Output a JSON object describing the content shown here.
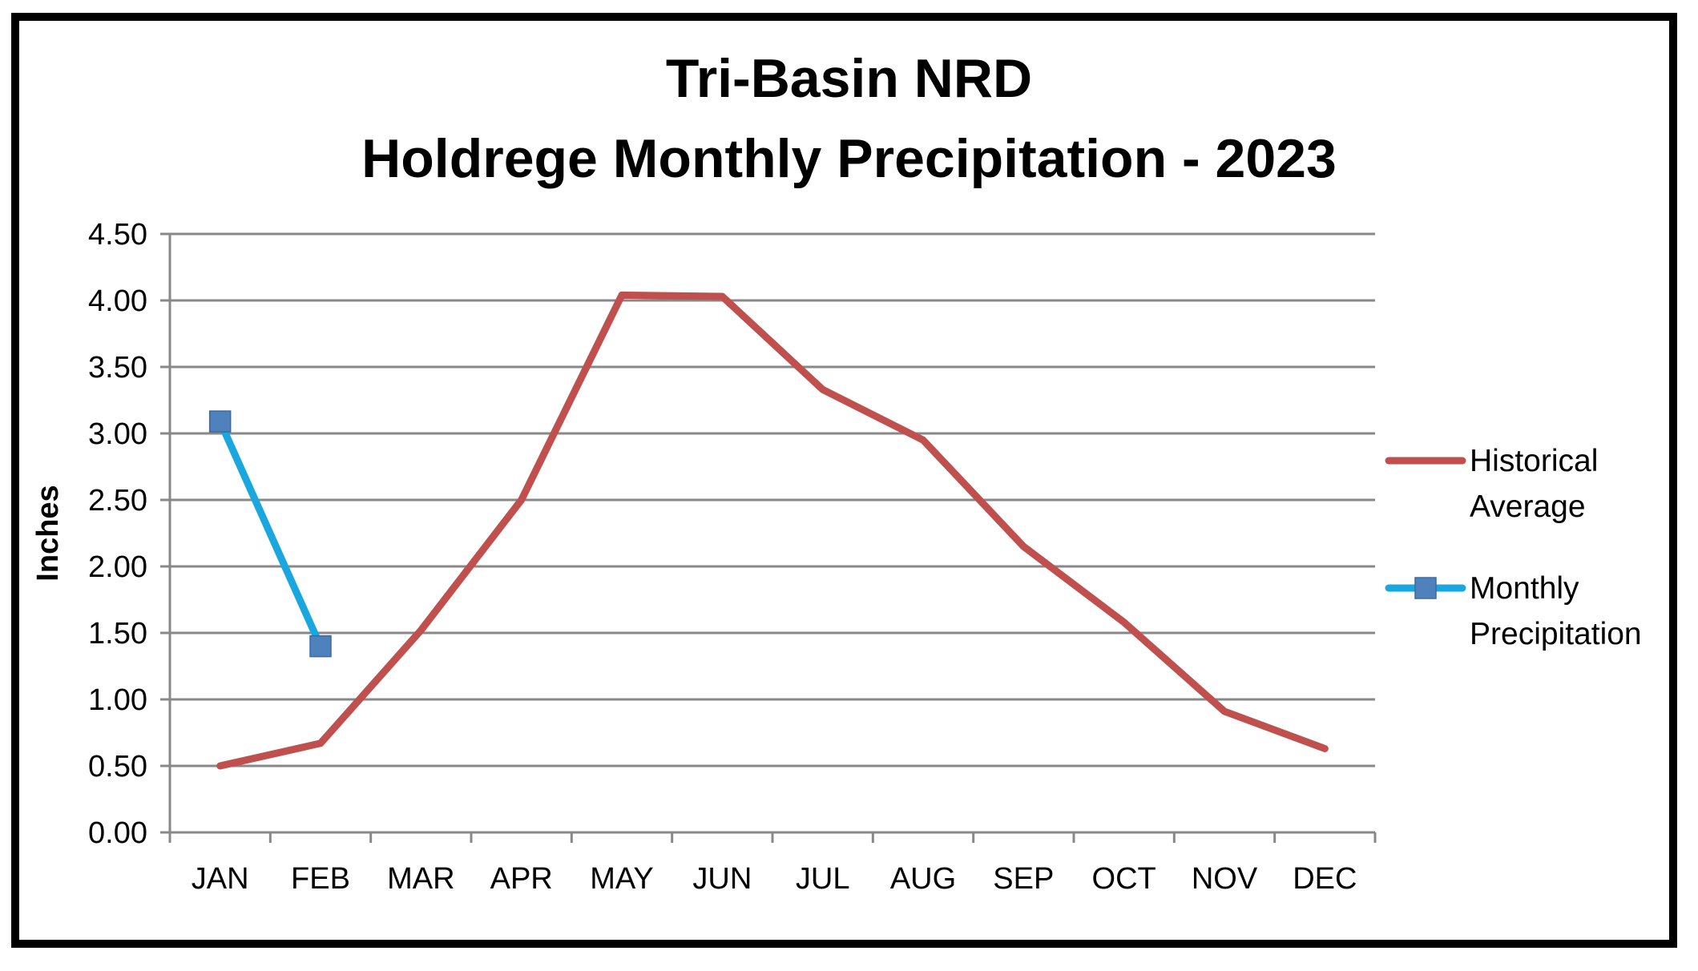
{
  "chart_data": {
    "type": "line",
    "title": [
      "Tri-Basin NRD",
      "Holdrege Monthly Precipitation - 2023"
    ],
    "xlabel": "",
    "ylabel": "Inches",
    "categories": [
      "JAN",
      "FEB",
      "MAR",
      "APR",
      "MAY",
      "JUN",
      "JUL",
      "AUG",
      "SEP",
      "OCT",
      "NOV",
      "DEC"
    ],
    "ylim": [
      0,
      4.5
    ],
    "yticks": [
      "0.00",
      "0.50",
      "1.00",
      "1.50",
      "2.00",
      "2.50",
      "3.00",
      "3.50",
      "4.00",
      "4.50"
    ],
    "grid": true,
    "legend_position": "right",
    "series": [
      {
        "name": [
          "Historical",
          "Average"
        ],
        "color": "#c0504d",
        "marker": "none",
        "values": [
          0.5,
          0.67,
          1.52,
          2.5,
          4.04,
          4.03,
          3.33,
          2.95,
          2.15,
          1.58,
          0.91,
          0.63
        ]
      },
      {
        "name": [
          "Monthly",
          "Precipitation"
        ],
        "color": "#1aa7e0",
        "marker": "square",
        "marker_color": "#4f81bd",
        "values": [
          3.09,
          1.4,
          null,
          null,
          null,
          null,
          null,
          null,
          null,
          null,
          null,
          null
        ]
      }
    ]
  }
}
